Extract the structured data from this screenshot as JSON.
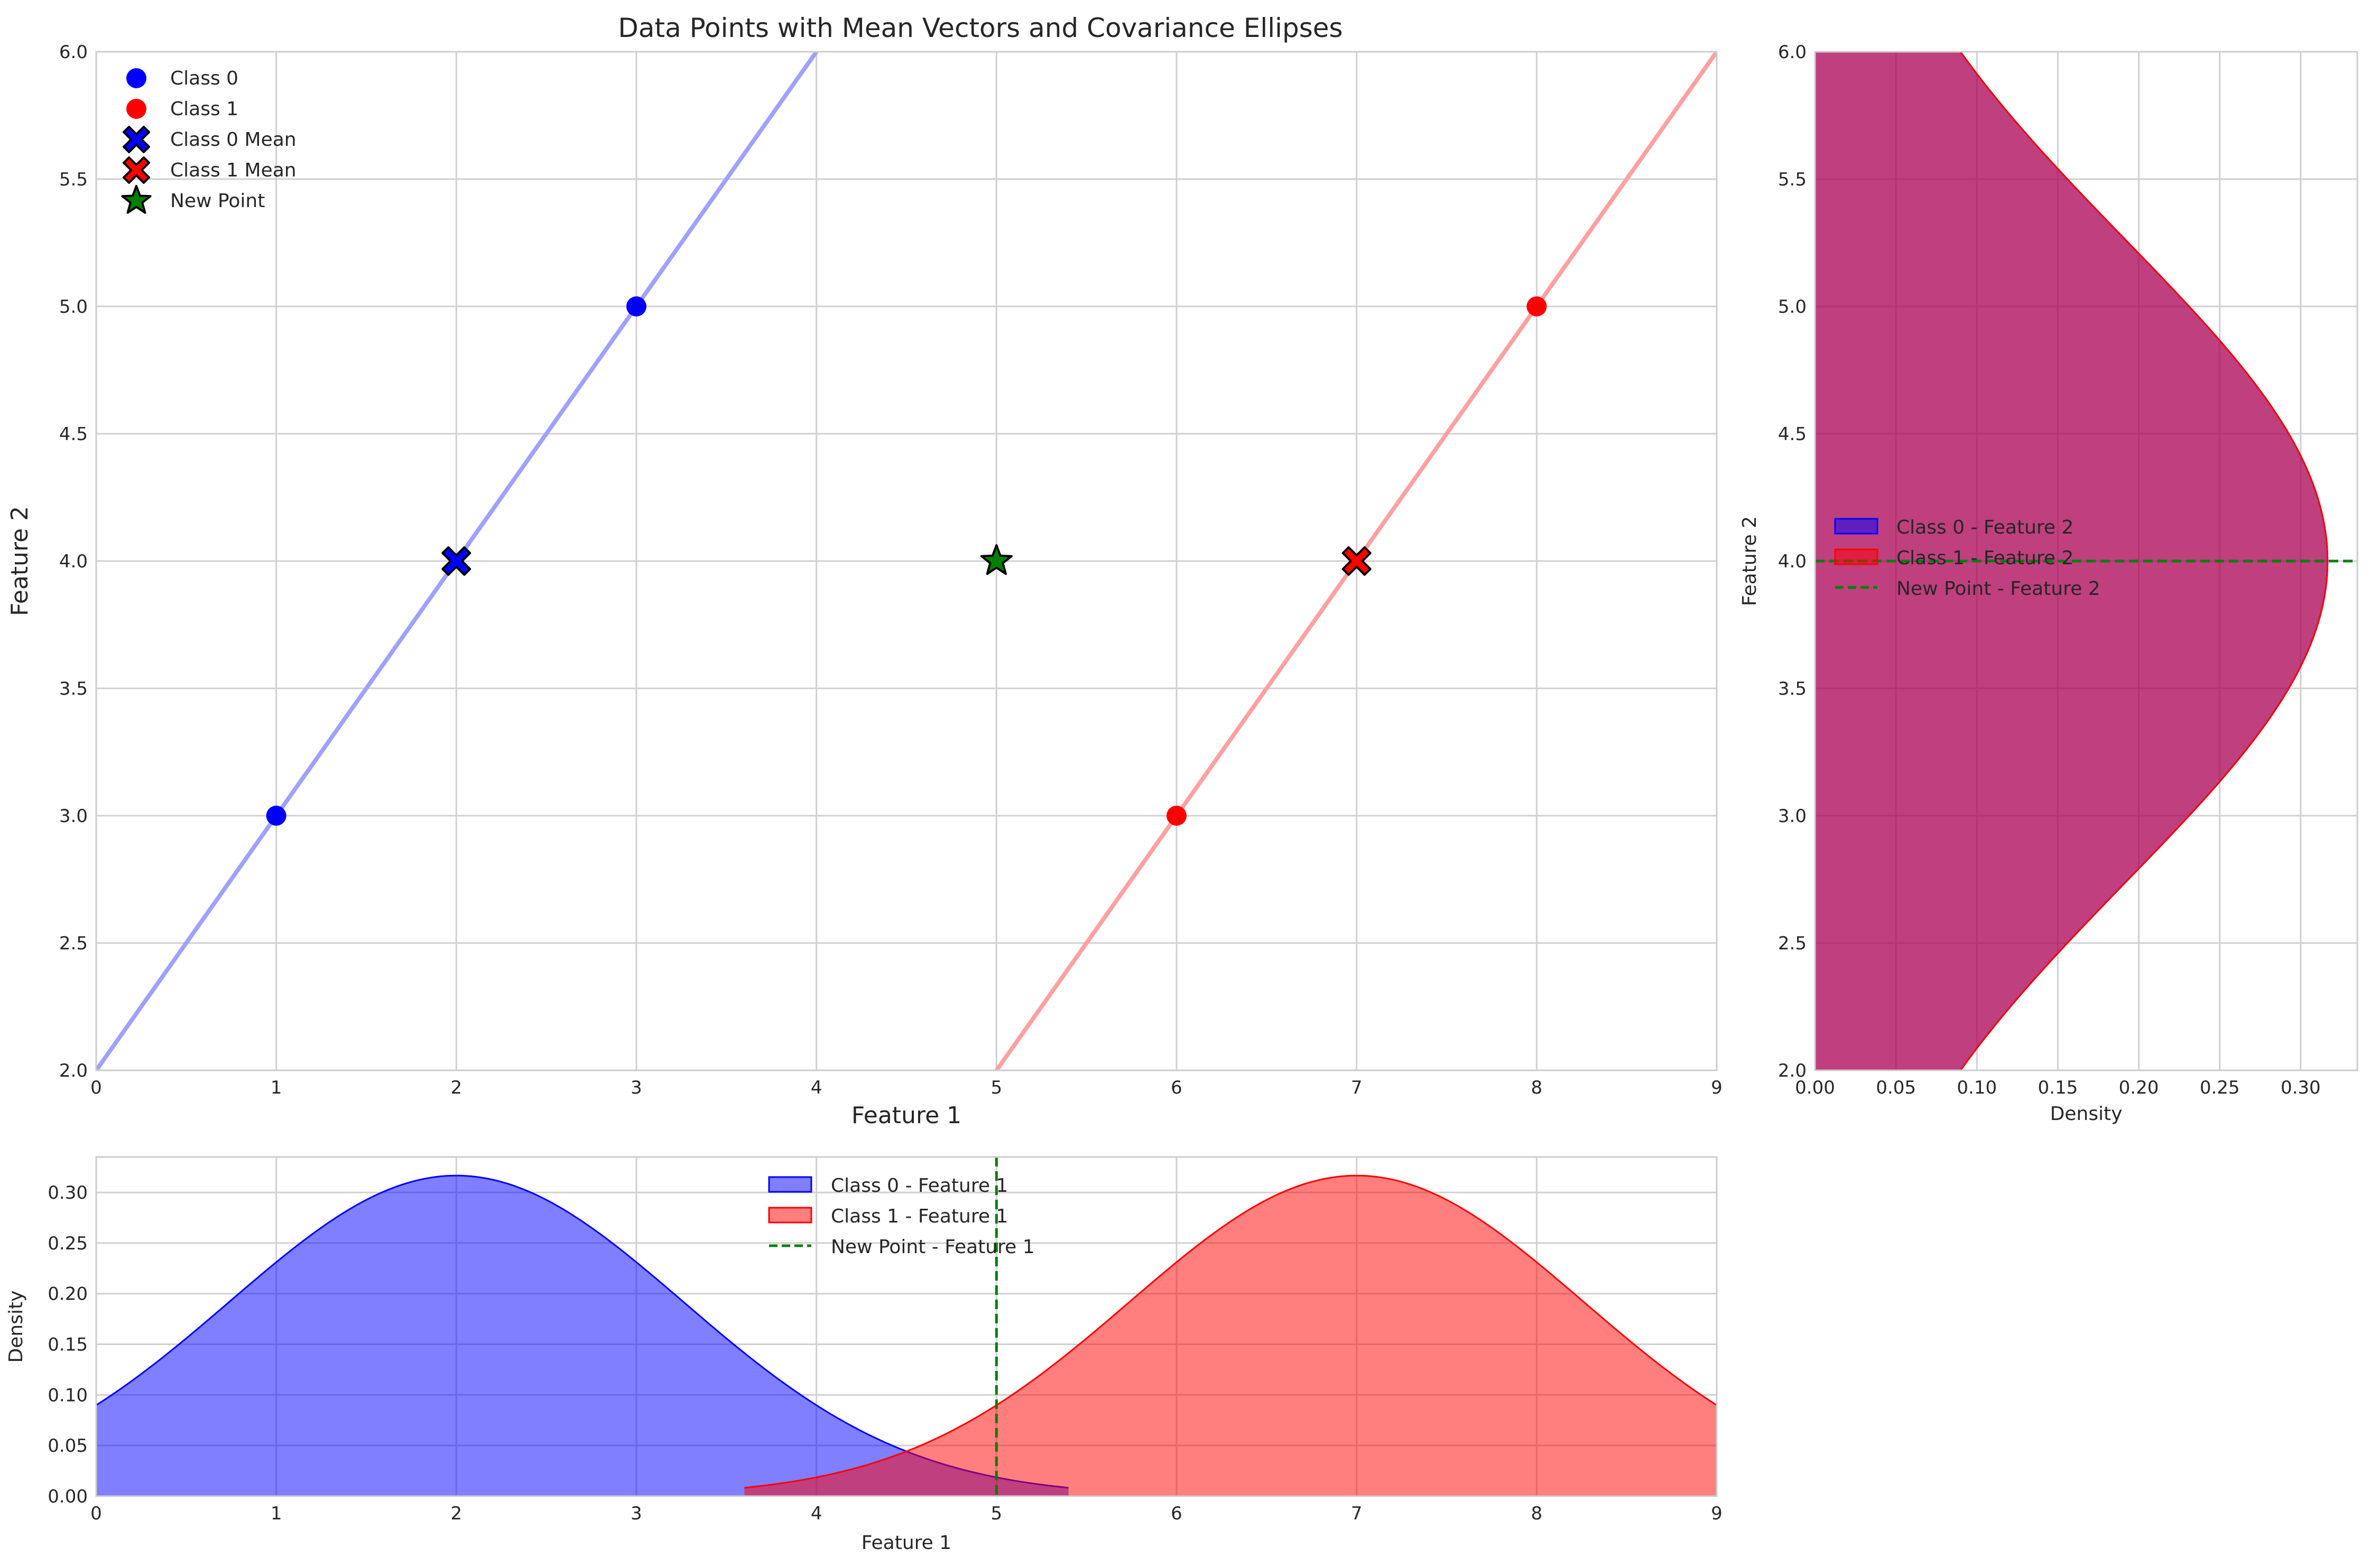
{
  "colors": {
    "class0": "#0000ff",
    "class1": "#ff0000",
    "new_point": "#008000",
    "class0_line": "#a0a0ff",
    "class1_line": "#ffa0a0"
  },
  "chart_data": [
    {
      "id": "main",
      "type": "scatter",
      "title": "Data Points with Mean Vectors and Covariance Ellipses",
      "xlabel": "Feature 1",
      "ylabel": "Feature 2",
      "xlim": [
        0,
        9
      ],
      "ylim": [
        2,
        6
      ],
      "xticks": [
        "0",
        "1",
        "2",
        "3",
        "4",
        "5",
        "6",
        "7",
        "8",
        "9"
      ],
      "yticks": [
        "2.0",
        "2.5",
        "3.0",
        "3.5",
        "4.0",
        "4.5",
        "5.0",
        "5.5",
        "6.0"
      ],
      "grid": true,
      "legend_position": "top-left",
      "series": [
        {
          "name": "Class 0",
          "marker": "circle",
          "color": "#0000ff",
          "points": [
            [
              1,
              3
            ],
            [
              3,
              5
            ]
          ]
        },
        {
          "name": "Class 1",
          "marker": "circle",
          "color": "#ff0000",
          "points": [
            [
              6,
              3
            ],
            [
              8,
              5
            ]
          ]
        },
        {
          "name": "Class 0 Mean",
          "marker": "x",
          "color": "#0000ff",
          "points": [
            [
              2,
              4
            ]
          ]
        },
        {
          "name": "Class 1 Mean",
          "marker": "x",
          "color": "#ff0000",
          "points": [
            [
              7,
              4
            ]
          ]
        },
        {
          "name": "New Point",
          "marker": "star",
          "color": "#008000",
          "points": [
            [
              5,
              4
            ]
          ]
        }
      ],
      "lines": [
        {
          "color": "#a0a0ff",
          "points": [
            [
              0,
              2
            ],
            [
              4,
              6
            ]
          ]
        },
        {
          "color": "#ffa0a0",
          "points": [
            [
              5,
              2
            ],
            [
              9,
              6
            ]
          ]
        }
      ]
    },
    {
      "id": "right",
      "type": "area",
      "orientation": "horizontal",
      "xlabel": "Density",
      "ylabel": "Feature 2",
      "xlim": [
        0,
        0.335
      ],
      "ylim": [
        2,
        6
      ],
      "xticks": [
        "0.00",
        "0.05",
        "0.10",
        "0.15",
        "0.20",
        "0.25",
        "0.30"
      ],
      "yticks": [
        "2.0",
        "2.5",
        "3.0",
        "3.5",
        "4.0",
        "4.5",
        "5.0",
        "5.5",
        "6.0"
      ],
      "grid": true,
      "legend_position": "center-left",
      "series": [
        {
          "name": "Class 0 - Feature 2",
          "distribution": "normal",
          "mean": 4,
          "std": 1.26,
          "color": "#0000ff"
        },
        {
          "name": "Class 1 - Feature 2",
          "distribution": "normal",
          "mean": 4,
          "std": 1.26,
          "color": "#ff0000"
        }
      ],
      "reference_line": {
        "name": "New Point - Feature 2",
        "value": 4,
        "color": "#008000",
        "style": "dashed"
      }
    },
    {
      "id": "bottom",
      "type": "area",
      "xlabel": "Feature 1",
      "ylabel": "Density",
      "xlim": [
        0,
        9
      ],
      "ylim": [
        0,
        0.335
      ],
      "xticks": [
        "0",
        "1",
        "2",
        "3",
        "4",
        "5",
        "6",
        "7",
        "8",
        "9"
      ],
      "yticks": [
        "0.00",
        "0.05",
        "0.10",
        "0.15",
        "0.20",
        "0.25",
        "0.30"
      ],
      "grid": true,
      "legend_position": "top-center",
      "series": [
        {
          "name": "Class 0 - Feature 1",
          "distribution": "normal",
          "mean": 2,
          "std": 1.26,
          "range": [
            0,
            5.4
          ],
          "color": "#0000ff"
        },
        {
          "name": "Class 1 - Feature 1",
          "distribution": "normal",
          "mean": 7,
          "std": 1.26,
          "range": [
            3.6,
            9
          ],
          "color": "#ff0000"
        }
      ],
      "reference_line": {
        "name": "New Point - Feature 1",
        "value": 5,
        "color": "#008000",
        "style": "dashed"
      }
    }
  ]
}
